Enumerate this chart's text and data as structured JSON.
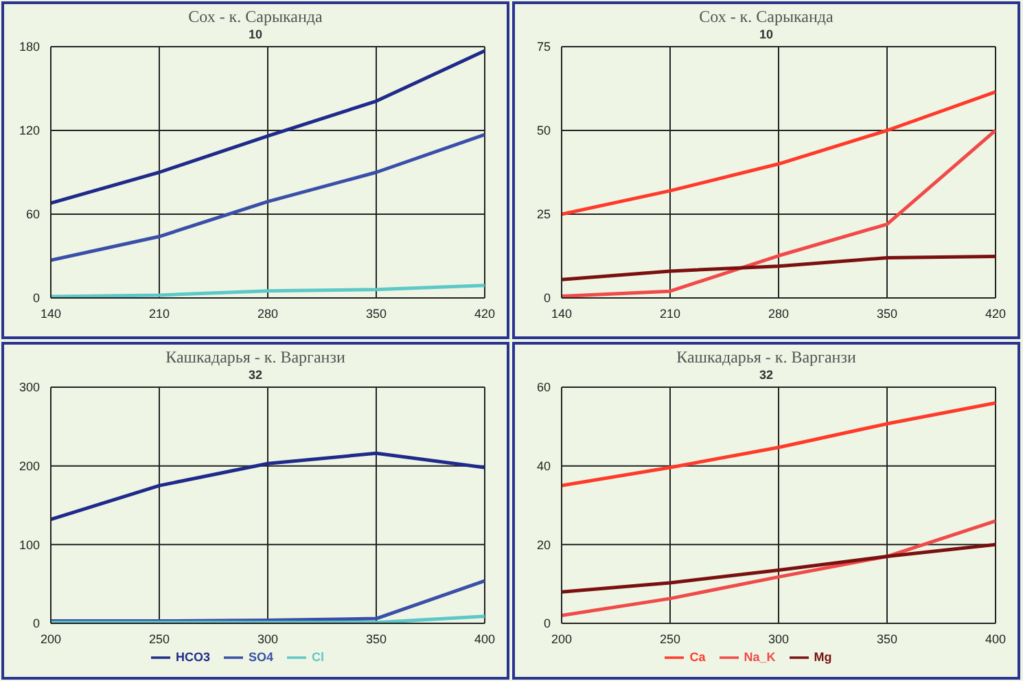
{
  "chart_data": [
    {
      "type": "line",
      "title": "Сох - к. Сарыканда",
      "subtitle": "10",
      "x": [
        140,
        210,
        280,
        350,
        420
      ],
      "xlim": [
        140,
        420
      ],
      "xticks": [
        140,
        210,
        280,
        350,
        420
      ],
      "ylim": [
        0,
        180
      ],
      "yticks": [
        0,
        60,
        120,
        180
      ],
      "grid": true,
      "legend": false,
      "marker": "none",
      "line_style": "solid",
      "series": [
        {
          "color": "#1f2a8a",
          "values": [
            68,
            90,
            116,
            141,
            177
          ]
        },
        {
          "color": "#3a4fa8",
          "values": [
            27,
            44,
            69,
            90,
            117
          ]
        },
        {
          "color": "#5ec8c8",
          "values": [
            1,
            2,
            5,
            6,
            9
          ]
        }
      ]
    },
    {
      "type": "line",
      "title": "Сох - к. Сарыканда",
      "subtitle": "10",
      "x": [
        140,
        210,
        280,
        350,
        420
      ],
      "xlim": [
        140,
        420
      ],
      "xticks": [
        140,
        210,
        280,
        350,
        420
      ],
      "ylim": [
        0,
        75
      ],
      "yticks": [
        0,
        25,
        50,
        75
      ],
      "grid": true,
      "legend": false,
      "marker": "none",
      "line_style": "solid",
      "series": [
        {
          "color": "#ff3a2a",
          "values": [
            25,
            32,
            40,
            50,
            61.5
          ]
        },
        {
          "color": "#f04a4a",
          "values": [
            0.5,
            2,
            12.6,
            22,
            50
          ]
        },
        {
          "color": "#7a1010",
          "values": [
            5.5,
            8,
            9.5,
            12,
            12.4
          ]
        }
      ]
    },
    {
      "type": "line",
      "title": "Кашкадарья - к. Варганзи",
      "subtitle": "32",
      "x": [
        200,
        250,
        300,
        350,
        400
      ],
      "xlim": [
        200,
        400
      ],
      "xticks": [
        200,
        250,
        300,
        350,
        400
      ],
      "ylim": [
        0,
        300
      ],
      "yticks": [
        0,
        100,
        200,
        300
      ],
      "grid": true,
      "legend": "bottom",
      "marker": "none",
      "line_style": "solid",
      "series": [
        {
          "name": "HCO3",
          "color": "#1f2a8a",
          "values": [
            132,
            175,
            203,
            216,
            198
          ]
        },
        {
          "name": "SO4",
          "color": "#3a4fa8",
          "values": [
            3,
            3,
            4,
            6,
            54
          ]
        },
        {
          "name": "Cl",
          "color": "#5ec8c8",
          "values": [
            1,
            1,
            1,
            1,
            9
          ]
        }
      ]
    },
    {
      "type": "line",
      "title": "Кашкадарья - к. Варганзи",
      "subtitle": "32",
      "x": [
        200,
        250,
        300,
        350,
        400
      ],
      "xlim": [
        200,
        400
      ],
      "xticks": [
        200,
        250,
        300,
        350,
        400
      ],
      "ylim": [
        0,
        60
      ],
      "yticks": [
        0,
        20,
        40,
        60
      ],
      "grid": true,
      "legend": "bottom",
      "marker": "none",
      "line_style": "solid",
      "series": [
        {
          "name": "Ca",
          "color": "#ff3a2a",
          "values": [
            35,
            39.6,
            44.7,
            50.7,
            56
          ]
        },
        {
          "name": "Na_K",
          "color": "#f04a4a",
          "values": [
            2,
            6.3,
            11.8,
            17,
            26
          ]
        },
        {
          "name": "Mg",
          "color": "#7a1010",
          "values": [
            8,
            10.3,
            13.5,
            17,
            20
          ]
        }
      ]
    }
  ]
}
